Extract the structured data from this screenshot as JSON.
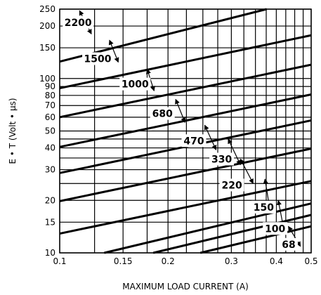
{
  "chart_data": {
    "type": "line",
    "xlabel": "MAXIMUM LOAD CURRENT (A)",
    "ylabel": "E • T (Volt • μs)",
    "xscale": "log",
    "yscale": "log",
    "xlim": [
      0.1,
      0.5
    ],
    "ylim": [
      10,
      250
    ],
    "x_ticks": [
      0.1,
      0.15,
      0.2,
      0.3,
      0.4,
      0.5
    ],
    "x_tick_labels": [
      "0.1",
      "0.15",
      "0.2",
      "0.3",
      "0.4",
      "0.5"
    ],
    "y_ticks": [
      10,
      15,
      20,
      30,
      40,
      50,
      60,
      70,
      80,
      90,
      100,
      150,
      200,
      250
    ],
    "y_tick_labels": [
      "10",
      "15",
      "20",
      "30",
      "40",
      "50",
      "60",
      "70",
      "80",
      "90",
      "100",
      "150",
      "200",
      "250"
    ],
    "x_gridlines": [
      0.1,
      0.125,
      0.15,
      0.175,
      0.2,
      0.225,
      0.25,
      0.275,
      0.3,
      0.325,
      0.35,
      0.375,
      0.4,
      0.425,
      0.45,
      0.475,
      0.5
    ],
    "y_gridlines": [
      10,
      15,
      20,
      25,
      30,
      35,
      40,
      45,
      50,
      60,
      70,
      80,
      90,
      100,
      150,
      200,
      250
    ],
    "grid": true,
    "series": [
      {
        "name": "2200",
        "x": [
          0.1,
          0.376
        ],
        "y": [
          125,
          250
        ],
        "label_at": [
          0.1125,
          210
        ],
        "arrow": [
          [
            0.1135,
            245
          ],
          [
            0.1225,
            180
          ]
        ]
      },
      {
        "name": "1500",
        "x": [
          0.1,
          0.5
        ],
        "y": [
          88,
          177
        ],
        "label_at": [
          0.1275,
          130
        ],
        "arrow": [
          [
            0.1375,
            166
          ],
          [
            0.1455,
            124
          ]
        ]
      },
      {
        "name": "1000",
        "x": [
          0.1,
          0.5
        ],
        "y": [
          60,
          120
        ],
        "label_at": [
          0.162,
          93
        ],
        "arrow": [
          [
            0.175,
            113
          ],
          [
            0.183,
            85
          ]
        ]
      },
      {
        "name": "680",
        "x": [
          0.1,
          0.5
        ],
        "y": [
          40.5,
          81
        ],
        "label_at": [
          0.193,
          63
        ],
        "arrow": [
          [
            0.21,
            76
          ],
          [
            0.223,
            56
          ]
        ]
      },
      {
        "name": "470",
        "x": [
          0.1,
          0.5
        ],
        "y": [
          28.7,
          57.5
        ],
        "label_at": [
          0.236,
          44
        ],
        "arrow": [
          [
            0.253,
            54
          ],
          [
            0.272,
            39
          ]
        ]
      },
      {
        "name": "330",
        "x": [
          0.1,
          0.5
        ],
        "y": [
          19.8,
          39.6
        ],
        "label_at": [
          0.282,
          34.5
        ],
        "arrow": [
          [
            0.294,
            45
          ],
          [
            0.318,
            32
          ]
        ]
      },
      {
        "name": "220",
        "x": [
          0.1,
          0.5
        ],
        "y": [
          12.9,
          25.8
        ],
        "label_at": [
          0.301,
          24.5
        ],
        "arrow": [
          [
            0.318,
            34.5
          ],
          [
            0.345,
            25
          ]
        ]
      },
      {
        "name": "150",
        "x": [
          0.133,
          0.5
        ],
        "y": [
          10,
          19.2
        ],
        "label_at": [
          0.369,
          18.3
        ],
        "arrow": [
          [
            0.372,
            26.5
          ],
          [
            0.383,
            18.3
          ]
        ]
      },
      {
        "name": "100",
        "x": [
          0.182,
          0.5
        ],
        "y": [
          10,
          16.5
        ],
        "label_at": [
          0.397,
          13.8
        ],
        "arrow": [
          [
            0.405,
            20
          ],
          [
            0.418,
            14.3
          ]
        ]
      },
      {
        "name": "68",
        "x": [
          0.246,
          0.5
        ],
        "y": [
          10,
          14.2
        ],
        "label_at": [
          0.433,
          11.2
        ],
        "arrow": [
          [
            0.432,
            14.2
          ],
          [
            0.467,
            10.9
          ]
        ]
      }
    ]
  }
}
